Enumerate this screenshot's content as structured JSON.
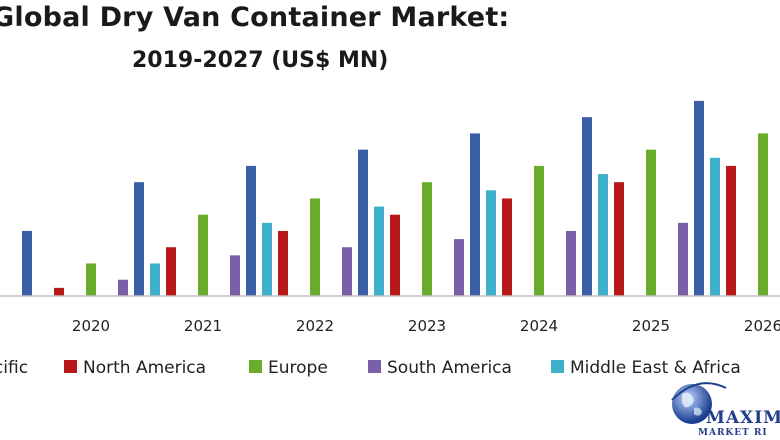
{
  "chart_data": {
    "type": "bar",
    "title": "Global Dry Van Container Market:",
    "subtitle": "2019-2027 (US$ MN)",
    "categories": [
      "2020",
      "2021",
      "2022",
      "2023",
      "2024",
      "2025",
      "2026"
    ],
    "series": [
      {
        "name": "Asia Pacific",
        "color": "#3b5fa6",
        "values": [
          4,
          7,
          8,
          9,
          10,
          11,
          12
        ]
      },
      {
        "name": "North America",
        "color": "#b81818",
        "values": [
          0.5,
          3,
          4,
          5,
          6,
          7,
          8
        ]
      },
      {
        "name": "Europe",
        "color": "#6aad2c",
        "values": [
          2,
          5,
          6,
          7,
          8,
          9,
          10
        ]
      },
      {
        "name": "South America",
        "color": "#7b5fa8",
        "values": [
          1,
          2.5,
          3,
          3.5,
          4,
          4.5,
          5
        ]
      },
      {
        "name": "Middle East & Africa",
        "color": "#3fb0cc",
        "values": [
          2,
          4.5,
          5.5,
          6.5,
          7.5,
          8.5,
          9.5
        ]
      }
    ],
    "ylim": [
      0,
      12.3
    ],
    "legend_position": "bottom",
    "grid": false
  },
  "watermark": {
    "line1": "MAXIM",
    "line2": "MARKET RI"
  }
}
